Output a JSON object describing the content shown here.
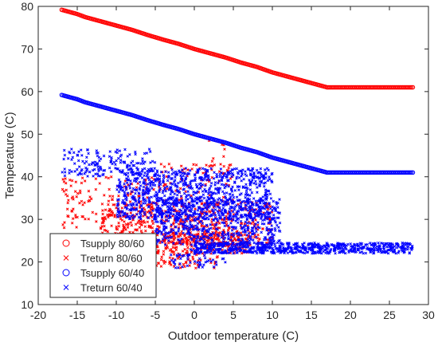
{
  "chart_data": {
    "type": "scatter",
    "xlabel": "Outdoor temperature (C)",
    "ylabel": "Temperature (C)",
    "xlim": [
      -20,
      30
    ],
    "ylim": [
      10,
      80
    ],
    "xticks": [
      -20,
      -15,
      -10,
      -5,
      0,
      5,
      10,
      15,
      20,
      25,
      30
    ],
    "yticks": [
      10,
      20,
      30,
      40,
      50,
      60,
      70,
      80
    ],
    "grid": false,
    "legend_position": "bottom-left",
    "series": [
      {
        "name": "Tsupply 80/60",
        "marker": "circle",
        "color": "#ff0000",
        "points": [
          [
            -17,
            79.2
          ],
          [
            -16,
            78.7
          ],
          [
            -15,
            78.2
          ],
          [
            -14,
            77.5
          ],
          [
            -12,
            76.5
          ],
          [
            -10,
            75.5
          ],
          [
            -8,
            74.5
          ],
          [
            -6,
            73.3
          ],
          [
            -4,
            72.2
          ],
          [
            -2,
            71.2
          ],
          [
            0,
            70.0
          ],
          [
            2,
            69.0
          ],
          [
            4,
            68.0
          ],
          [
            6,
            66.8
          ],
          [
            8,
            65.8
          ],
          [
            10,
            64.5
          ],
          [
            12,
            63.5
          ],
          [
            14,
            62.5
          ],
          [
            16,
            61.5
          ],
          [
            17,
            61.0
          ],
          [
            20,
            61.0
          ],
          [
            23,
            61.0
          ],
          [
            25,
            61.0
          ],
          [
            26.5,
            61.0
          ],
          [
            27.5,
            61.0
          ],
          [
            28,
            61.0
          ]
        ]
      },
      {
        "name": "Treturn 80/60",
        "marker": "x",
        "color": "#ff0000",
        "clusters": [
          {
            "x": [
              -17,
              -5
            ],
            "y": [
              28,
              40
            ],
            "n": 140
          },
          {
            "x": [
              -12,
              10
            ],
            "y": [
              24,
              34
            ],
            "n": 520
          },
          {
            "x": [
              -7,
              7
            ],
            "y": [
              22,
              27
            ],
            "n": 260
          },
          {
            "x": [
              -5,
              3
            ],
            "y": [
              18.5,
              22
            ],
            "n": 60
          },
          {
            "x": [
              1.5,
              4
            ],
            "y": [
              40,
              48.5
            ],
            "n": 14
          },
          {
            "x": [
              -5,
              5
            ],
            "y": [
              33,
              43
            ],
            "n": 90
          }
        ]
      },
      {
        "name": "Tsupply 60/40",
        "marker": "circle",
        "color": "#0000ff",
        "points": [
          [
            -17,
            59.2
          ],
          [
            -16,
            58.7
          ],
          [
            -15,
            58.2
          ],
          [
            -14,
            57.5
          ],
          [
            -12,
            56.5
          ],
          [
            -10,
            55.5
          ],
          [
            -8,
            54.5
          ],
          [
            -6,
            53.3
          ],
          [
            -4,
            52.2
          ],
          [
            -2,
            51.2
          ],
          [
            0,
            50.0
          ],
          [
            2,
            49.0
          ],
          [
            4,
            48.0
          ],
          [
            6,
            46.8
          ],
          [
            8,
            45.8
          ],
          [
            10,
            44.5
          ],
          [
            12,
            43.5
          ],
          [
            14,
            42.5
          ],
          [
            16,
            41.5
          ],
          [
            17,
            41.0
          ],
          [
            20,
            41.0
          ],
          [
            23,
            41.0
          ],
          [
            25,
            41.0
          ],
          [
            26.5,
            41.0
          ],
          [
            27.5,
            41.0
          ],
          [
            28,
            41.0
          ]
        ]
      },
      {
        "name": "Treturn 60/40",
        "marker": "x",
        "color": "#0000ff",
        "clusters": [
          {
            "x": [
              -17,
              -5
            ],
            "y": [
              40,
              46.5
            ],
            "n": 160
          },
          {
            "x": [
              -10,
              10
            ],
            "y": [
              30,
              42
            ],
            "n": 900
          },
          {
            "x": [
              -5,
              11
            ],
            "y": [
              24,
              35
            ],
            "n": 600
          },
          {
            "x": [
              0,
              28
            ],
            "y": [
              22,
              24.5
            ],
            "n": 700
          },
          {
            "x": [
              -3,
              4
            ],
            "y": [
              18.5,
              23
            ],
            "n": 60
          }
        ]
      }
    ]
  }
}
